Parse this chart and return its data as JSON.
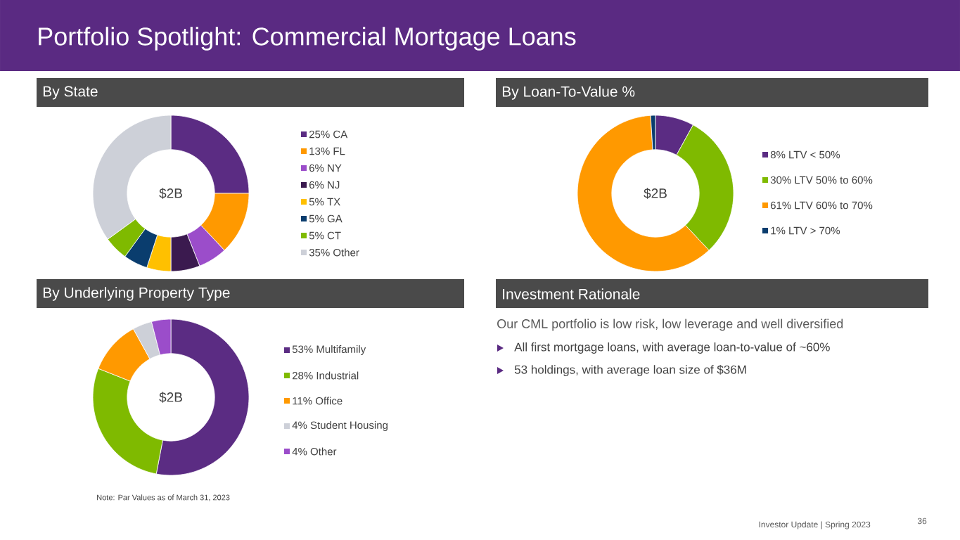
{
  "chart_data": [
    {
      "type": "donut",
      "title": "By State",
      "legend": "right",
      "annotations": [
        "$2B"
      ],
      "categories": [
        "25% CA",
        "13% FL",
        "6% NY",
        "6% NJ",
        "5% TX",
        "5% GA",
        "5% CT",
        "35% Other"
      ],
      "values": [
        25,
        13,
        6,
        6,
        5,
        5,
        5,
        35
      ],
      "colors": [
        "#5b2c83",
        "#ff9900",
        "#9b4dca",
        "#3b1a4f",
        "#ffc000",
        "#0a3d6e",
        "#7fba00",
        "#cdd0d8"
      ]
    },
    {
      "type": "donut",
      "title": "By Loan-To-Value %",
      "legend": "right",
      "annotations": [
        "$2B"
      ],
      "categories": [
        "8% LTV < 50%",
        "30% LTV 50% to 60%",
        "61% LTV 60% to 70%",
        "1%   LTV > 70%"
      ],
      "values": [
        8,
        30,
        61,
        1
      ],
      "colors": [
        "#5b2c83",
        "#7fba00",
        "#ff9900",
        "#0a3d6e"
      ]
    },
    {
      "type": "donut",
      "title": "By Underlying Property Type",
      "legend": "right",
      "annotations": [
        "$2B",
        "Note: Par Values as of March 31, 2023"
      ],
      "categories": [
        "53% Multifamily",
        "28% Industrial",
        "11% Office",
        "4% Student Housing",
        "4% Other"
      ],
      "values": [
        53,
        28,
        11,
        4,
        4
      ],
      "colors": [
        "#5b2c83",
        "#7fba00",
        "#ff9900",
        "#cdd0d8",
        "#9b4dca"
      ]
    },
    {
      "type": "other",
      "title": "Investment Rationale",
      "annotations": [
        "Our CML portfolio is low risk, low leverage and well diversified",
        "All first mortgage loans, with average loan-to-value of ~60%",
        "53 holdings, with average loan size of $36M",
        "Portfolio Spotlight:  Commercial Mortgage Loans",
        "Investor Update | Spring 2023",
        "36"
      ]
    }
  ]
}
